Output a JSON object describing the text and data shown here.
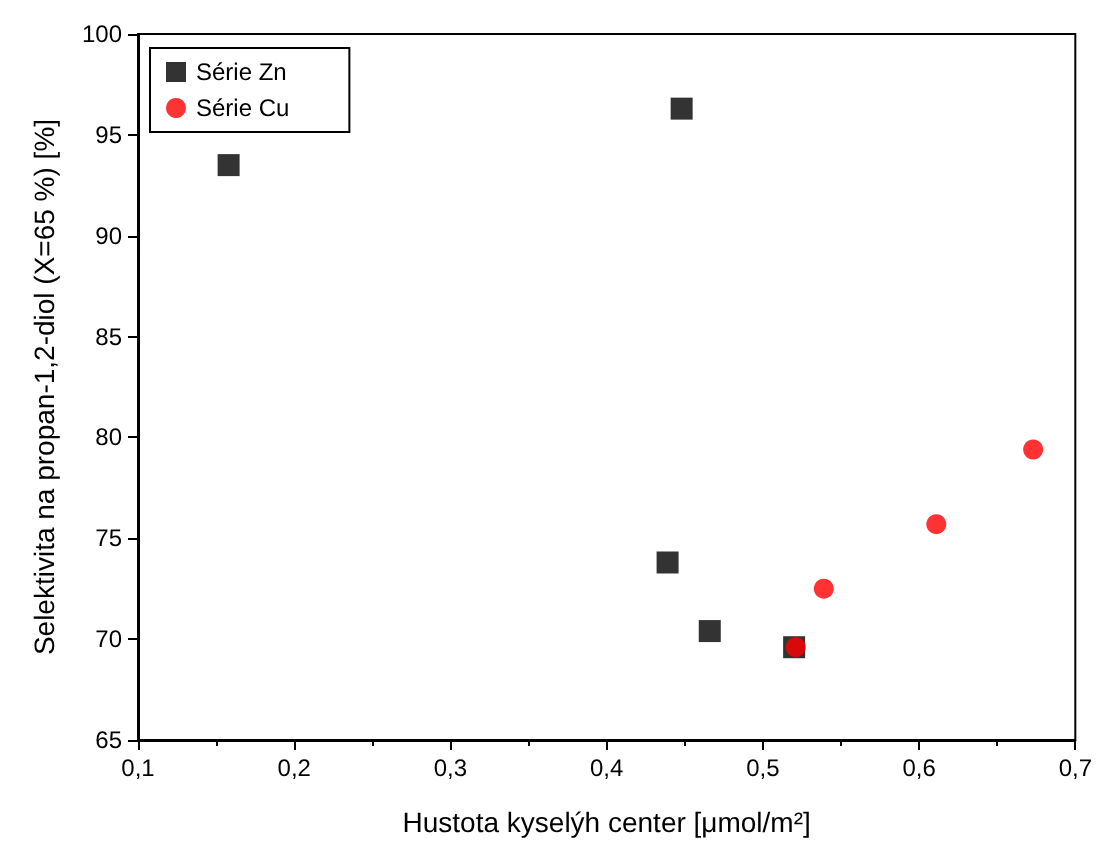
{
  "chart_data": {
    "type": "scatter",
    "xlabel": "Hustota kyselýh center [μmol/m²]",
    "ylabel": "Selektivita na propan-1,2-diol (X=65 %) [%]",
    "xlim": [
      0.1,
      0.7
    ],
    "xticks": [
      {
        "value": 0.1,
        "label": "0,1"
      },
      {
        "value": 0.2,
        "label": "0,2"
      },
      {
        "value": 0.3,
        "label": "0,3"
      },
      {
        "value": 0.4,
        "label": "0,4"
      },
      {
        "value": 0.5,
        "label": "0,5"
      },
      {
        "value": 0.6,
        "label": "0,6"
      },
      {
        "value": 0.7,
        "label": "0,7"
      }
    ],
    "ylim": [
      65,
      100
    ],
    "yticks": [
      65,
      70,
      75,
      80,
      85,
      90,
      95,
      100
    ],
    "grid": false,
    "legend": "top left",
    "series": [
      {
        "name": "Série Zn",
        "color": "#000000",
        "marker": "square",
        "x": [
          0.158,
          0.448,
          0.439,
          0.466,
          0.52
        ],
        "values": [
          93.5,
          96.3,
          73.8,
          70.4,
          69.6
        ]
      },
      {
        "name": "Série Cu",
        "color": "#ff0000",
        "marker": "circle",
        "x": [
          0.521,
          0.539,
          0.611,
          0.673
        ],
        "values": [
          69.6,
          72.5,
          75.7,
          79.4
        ]
      }
    ]
  }
}
